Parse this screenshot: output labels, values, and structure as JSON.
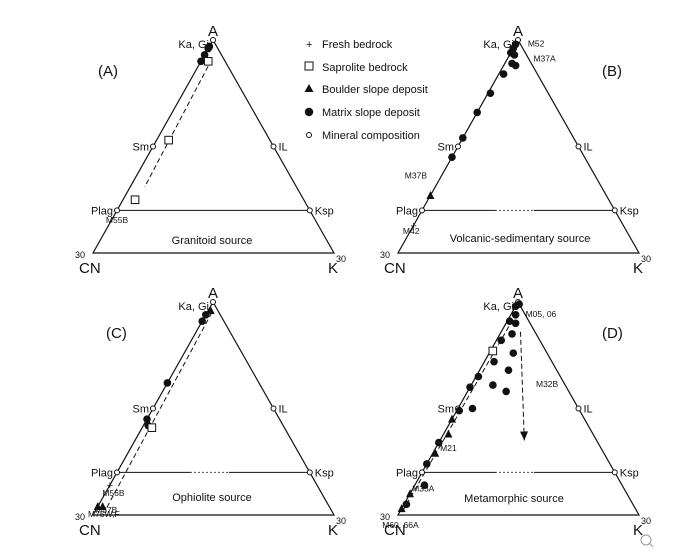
{
  "legend": [
    {
      "symbol": "plus",
      "label": "Fresh bedrock"
    },
    {
      "symbol": "square",
      "label": "Saprolite bedrock"
    },
    {
      "symbol": "triangle",
      "label": "Boulder slope deposit"
    },
    {
      "symbol": "dot",
      "label": "Matrix slope deposit"
    },
    {
      "symbol": "circle",
      "label": "Mineral composition"
    }
  ],
  "chart_data": [
    {
      "type": "scatter",
      "panel": "(A)",
      "caption": "Granitoid source",
      "vertices": {
        "top": "A",
        "left": "CN",
        "right": "K"
      },
      "tick_labels": {
        "left": "30",
        "right": "30"
      },
      "minerals": [
        {
          "label": "Ka, Gi",
          "CN": 0,
          "K": 0
        },
        {
          "label": "Sm",
          "CN": 0.5,
          "K": 0
        },
        {
          "label": "IL",
          "CN": 0,
          "K": 0.5
        },
        {
          "label": "Plag",
          "CN": 0.8,
          "K": 0
        },
        {
          "label": "Ksp",
          "CN": 0,
          "K": 0.8
        }
      ],
      "feldspar_join": "solid",
      "trend": {
        "from": [
          0.05,
          0.04
        ],
        "to": [
          0.63,
          0.06
        ]
      },
      "points": [
        {
          "symbol": "dot",
          "CN": 0.03,
          "K": 0.0
        },
        {
          "symbol": "dot",
          "CN": 0.04,
          "K": 0.0
        },
        {
          "symbol": "dot",
          "CN": 0.07,
          "K": 0.0
        },
        {
          "symbol": "dot",
          "CN": 0.1,
          "K": 0.0
        },
        {
          "symbol": "square",
          "CN": 0.07,
          "K": 0.03
        },
        {
          "symbol": "square",
          "CN": 0.42,
          "K": 0.05
        },
        {
          "symbol": "square",
          "CN": 0.7,
          "K": 0.05
        }
      ],
      "sample_labels": [
        {
          "text": "M55B",
          "CN": 0.83,
          "K": 0.03
        }
      ]
    },
    {
      "type": "scatter",
      "panel": "(B)",
      "caption": "Volcanic-sedimentary source",
      "vertices": {
        "top": "A",
        "left": "CN",
        "right": "K"
      },
      "tick_labels": {
        "left": "30",
        "right": "30"
      },
      "minerals": [
        {
          "label": "Ka, Gi",
          "CN": 0,
          "K": 0
        },
        {
          "label": "Sm",
          "CN": 0.5,
          "K": 0
        },
        {
          "label": "IL",
          "CN": 0,
          "K": 0.5
        },
        {
          "label": "Plag",
          "CN": 0.8,
          "K": 0
        },
        {
          "label": "Ksp",
          "CN": 0,
          "K": 0.8
        }
      ],
      "feldspar_join": "dotted",
      "trend": null,
      "points": [
        {
          "symbol": "dot",
          "CN": 0.02,
          "K": 0.0
        },
        {
          "symbol": "dot",
          "CN": 0.04,
          "K": 0.0
        },
        {
          "symbol": "dot",
          "CN": 0.06,
          "K": 0.0
        },
        {
          "symbol": "dot",
          "CN": 0.05,
          "K": 0.02
        },
        {
          "symbol": "dot",
          "CN": 0.08,
          "K": 0.03
        },
        {
          "symbol": "dot",
          "CN": 0.07,
          "K": 0.05
        },
        {
          "symbol": "dot",
          "CN": 0.14,
          "K": 0.02
        },
        {
          "symbol": "dot",
          "CN": 0.24,
          "K": 0.01
        },
        {
          "symbol": "dot",
          "CN": 0.34,
          "K": 0.0
        },
        {
          "symbol": "dot",
          "CN": 0.46,
          "K": 0.0
        },
        {
          "symbol": "dot",
          "CN": 0.55,
          "K": 0.0
        },
        {
          "symbol": "triangle",
          "CN": 0.73,
          "K": 0.0
        },
        {
          "symbol": "plus",
          "CN": 0.87,
          "K": 0.0
        }
      ],
      "sample_labels": [
        {
          "text": "M52",
          "CN": -0.06,
          "K": 0.09
        },
        {
          "text": "M37A",
          "CN": -0.06,
          "K": 0.16
        },
        {
          "text": "M37B",
          "CN": 0.75,
          "K": -0.1
        },
        {
          "text": "M42",
          "CN": 0.9,
          "K": 0.01
        }
      ]
    },
    {
      "type": "scatter",
      "panel": "(C)",
      "caption": "Ophiolite source",
      "vertices": {
        "top": "A",
        "left": "CN",
        "right": "K"
      },
      "tick_labels": {
        "left": "30",
        "right": "30"
      },
      "minerals": [
        {
          "label": "Ka, Gi",
          "CN": 0,
          "K": 0
        },
        {
          "label": "Sm",
          "CN": 0.5,
          "K": 0
        },
        {
          "label": "IL",
          "CN": 0,
          "K": 0.5
        },
        {
          "label": "Plag",
          "CN": 0.8,
          "K": 0
        },
        {
          "label": "Ksp",
          "CN": 0,
          "K": 0.8
        }
      ],
      "feldspar_join": "dotted",
      "trend": {
        "from": [
          0.03,
          0.02
        ],
        "to": [
          0.93,
          0.04
        ]
      },
      "points": [
        {
          "symbol": "triangle",
          "CN": 0.03,
          "K": 0.01
        },
        {
          "symbol": "dot",
          "CN": 0.06,
          "K": 0.0
        },
        {
          "symbol": "dot",
          "CN": 0.09,
          "K": 0.0
        },
        {
          "symbol": "dot",
          "CN": 0.38,
          "K": 0.0
        },
        {
          "symbol": "dot",
          "CN": 0.55,
          "K": 0.0
        },
        {
          "symbol": "dot",
          "CN": 0.56,
          "K": 0.02
        },
        {
          "symbol": "square",
          "CN": 0.55,
          "K": 0.04
        },
        {
          "symbol": "plus",
          "CN": 0.86,
          "K": 0.0
        },
        {
          "symbol": "triangle",
          "CN": 0.96,
          "K": 0.0
        },
        {
          "symbol": "triangle",
          "CN": 0.94,
          "K": 0.02
        }
      ],
      "sample_labels": [
        {
          "text": "M56B",
          "CN": 0.87,
          "K": 0.04
        },
        {
          "text": "M57B",
          "CN": 0.94,
          "K": 0.05
        },
        {
          "text": "M75W,F",
          "CN": 0.96,
          "K": 0.05
        }
      ]
    },
    {
      "type": "scatter",
      "panel": "(D)",
      "caption": "Metamorphic source",
      "vertices": {
        "top": "A",
        "left": "CN",
        "right": "K"
      },
      "tick_labels": {
        "left": "30",
        "right": "30"
      },
      "minerals": [
        {
          "label": "Ka, Gi",
          "CN": 0,
          "K": 0
        },
        {
          "label": "Sm",
          "CN": 0.5,
          "K": 0
        },
        {
          "label": "IL",
          "CN": 0,
          "K": 0.5
        },
        {
          "label": "Plag",
          "CN": 0.8,
          "K": 0
        },
        {
          "label": "Ksp",
          "CN": 0,
          "K": 0.8
        }
      ],
      "feldspar_join": "dotted",
      "trend": {
        "from": [
          0.03,
          0.02
        ],
        "to": [
          0.98,
          0.01
        ]
      },
      "arrow": {
        "from": [
          0.06,
          0.08
        ],
        "to": [
          0.3,
          0.35
        ]
      },
      "points": [
        {
          "symbol": "dot",
          "CN": 0.0,
          "K": 0.01
        },
        {
          "symbol": "dot",
          "CN": 0.02,
          "K": 0.0
        },
        {
          "symbol": "dot",
          "CN": 0.04,
          "K": 0.02
        },
        {
          "symbol": "dot",
          "CN": 0.06,
          "K": 0.04
        },
        {
          "symbol": "dot",
          "CN": 0.08,
          "K": 0.01
        },
        {
          "symbol": "dot",
          "CN": 0.1,
          "K": 0.05
        },
        {
          "symbol": "dot",
          "CN": 0.14,
          "K": 0.1
        },
        {
          "symbol": "dot",
          "CN": 0.16,
          "K": 0.02
        },
        {
          "symbol": "dot",
          "CN": 0.2,
          "K": 0.12
        },
        {
          "symbol": "dot",
          "CN": 0.24,
          "K": 0.04
        },
        {
          "symbol": "dot",
          "CN": 0.26,
          "K": 0.16
        },
        {
          "symbol": "dot",
          "CN": 0.3,
          "K": 0.09
        },
        {
          "symbol": "dot",
          "CN": 0.34,
          "K": 0.01
        },
        {
          "symbol": "dot",
          "CN": 0.4,
          "K": 0.0
        },
        {
          "symbol": "dot",
          "CN": 0.44,
          "K": 0.06
        },
        {
          "symbol": "dot",
          "CN": 0.5,
          "K": 0.01
        },
        {
          "symbol": "triangle",
          "CN": 0.55,
          "K": 0.0
        },
        {
          "symbol": "triangle",
          "CN": 0.6,
          "K": 0.02
        },
        {
          "symbol": "dot",
          "CN": 0.66,
          "K": 0.0
        },
        {
          "symbol": "triangle",
          "CN": 0.7,
          "K": 0.01
        },
        {
          "symbol": "dot",
          "CN": 0.76,
          "K": 0.0
        },
        {
          "symbol": "dot",
          "CN": 0.82,
          "K": 0.04
        },
        {
          "symbol": "triangle",
          "CN": 0.9,
          "K": 0.0
        },
        {
          "symbol": "dot",
          "CN": 0.94,
          "K": 0.01
        },
        {
          "symbol": "triangle",
          "CN": 0.97,
          "K": 0.0
        },
        {
          "symbol": "square",
          "CN": 0.22,
          "K": 0.01
        }
      ],
      "sample_labels": [
        {
          "text": "M05, 06",
          "CN": -0.06,
          "K": 0.13
        },
        {
          "text": "M32B",
          "CN": 0.08,
          "K": 0.32
        },
        {
          "text": "M21",
          "CN": 0.64,
          "K": 0.06
        },
        {
          "text": "M33A",
          "CN": 0.84,
          "K": 0.05
        },
        {
          "text": "M60, 66A",
          "CN": 1.02,
          "K": 0.04
        }
      ]
    }
  ]
}
